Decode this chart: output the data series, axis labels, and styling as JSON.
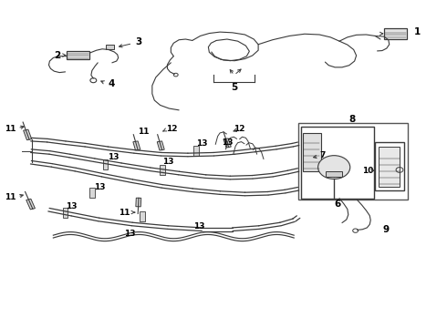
{
  "bg_color": "#ffffff",
  "line_color": "#3a3a3a",
  "label_color": "#000000",
  "fig_width": 4.9,
  "fig_height": 3.6,
  "dpi": 100,
  "font_size": 7.5,
  "font_size_sm": 6.5
}
